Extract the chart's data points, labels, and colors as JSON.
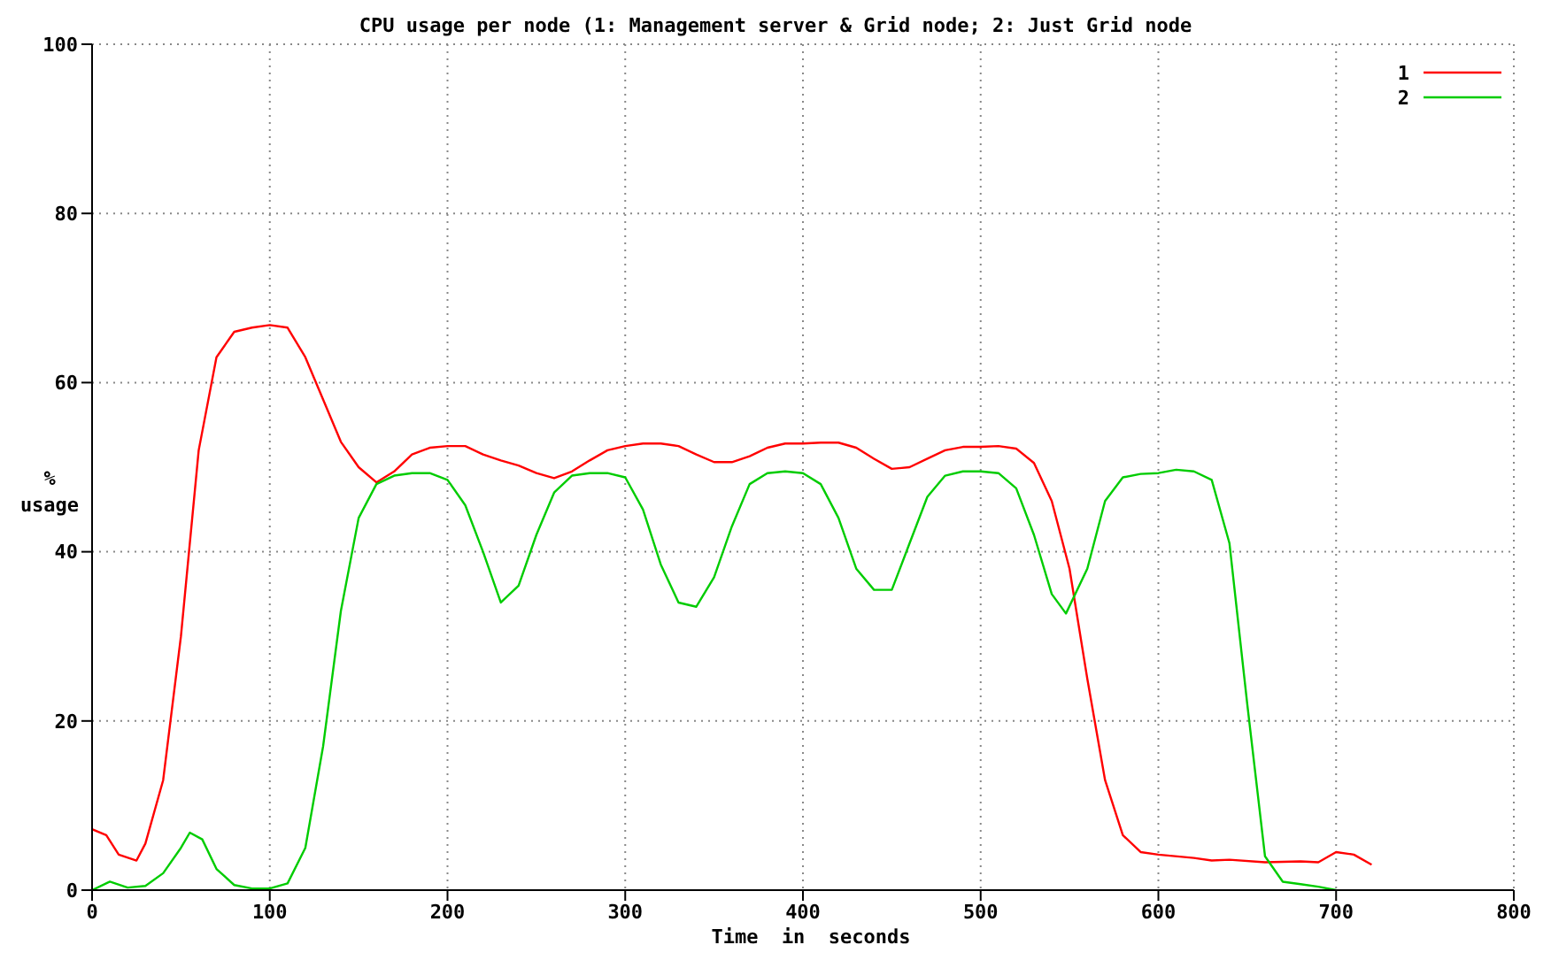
{
  "chart_data": {
    "type": "line",
    "title": "CPU usage per node (1: Management server & Grid node;  2: Just Grid node",
    "xlabel": "Time  in  seconds",
    "ylabel": "% usage",
    "xlim": [
      0,
      800
    ],
    "xticks": [
      0,
      100,
      200,
      300,
      400,
      500,
      600,
      700,
      800
    ],
    "ylim": [
      0,
      100
    ],
    "yticks": [
      0,
      20,
      40,
      60,
      80,
      100
    ],
    "grid": true,
    "legend": "top right",
    "marker": "none",
    "line_style": "solid",
    "series": [
      {
        "name": "1",
        "color": "#ff0000",
        "x": [
          0,
          8,
          15,
          25,
          30,
          40,
          50,
          60,
          70,
          80,
          90,
          100,
          110,
          120,
          130,
          140,
          150,
          160,
          170,
          180,
          190,
          200,
          210,
          220,
          230,
          240,
          250,
          260,
          270,
          280,
          290,
          300,
          310,
          320,
          330,
          340,
          350,
          360,
          370,
          380,
          390,
          400,
          410,
          420,
          430,
          440,
          450,
          460,
          470,
          480,
          490,
          500,
          510,
          520,
          530,
          540,
          550,
          560,
          570,
          580,
          590,
          600,
          620,
          630,
          640,
          660,
          680,
          690,
          700,
          710,
          720
        ],
        "values": [
          7.2,
          6.5,
          4.2,
          3.5,
          5.5,
          13,
          30,
          52,
          63,
          66,
          66.5,
          66.8,
          66.5,
          63,
          58,
          53,
          50,
          48.2,
          49.5,
          51.5,
          52.3,
          52.5,
          52.5,
          51.5,
          50.8,
          50.2,
          49.3,
          48.7,
          49.5,
          50.8,
          52,
          52.5,
          52.8,
          52.8,
          52.5,
          51.5,
          50.6,
          50.6,
          51.3,
          52.3,
          52.8,
          52.8,
          52.9,
          52.9,
          52.3,
          51,
          49.8,
          50,
          51,
          52,
          52.4,
          52.4,
          52.5,
          52.2,
          50.5,
          46,
          38,
          25,
          13,
          6.5,
          4.5,
          4.2,
          3.8,
          3.5,
          3.6,
          3.3,
          3.4,
          3.3,
          4.5,
          4.2,
          3
        ]
      },
      {
        "name": "2",
        "color": "#00cc00",
        "x": [
          0,
          10,
          20,
          30,
          40,
          50,
          55,
          62,
          70,
          80,
          90,
          100,
          110,
          120,
          130,
          140,
          150,
          160,
          170,
          180,
          190,
          200,
          210,
          220,
          230,
          240,
          250,
          260,
          270,
          280,
          290,
          300,
          310,
          320,
          330,
          340,
          350,
          360,
          370,
          380,
          390,
          400,
          410,
          420,
          430,
          440,
          450,
          460,
          470,
          480,
          490,
          500,
          510,
          520,
          530,
          540,
          548,
          560,
          570,
          580,
          590,
          600,
          610,
          620,
          630,
          640,
          650,
          660,
          670,
          680,
          690,
          700
        ],
        "values": [
          0,
          1,
          0.3,
          0.5,
          2,
          5,
          6.8,
          6,
          2.5,
          0.6,
          0.2,
          0.2,
          0.8,
          5,
          17,
          33,
          44,
          48,
          49,
          49.3,
          49.3,
          48.5,
          45.5,
          40,
          34,
          36,
          42,
          47,
          49,
          49.3,
          49.3,
          48.8,
          45,
          38.5,
          34,
          33.5,
          37,
          43,
          48,
          49.3,
          49.5,
          49.3,
          48,
          44,
          38,
          35.5,
          35.5,
          41,
          46.5,
          49,
          49.5,
          49.5,
          49.3,
          47.5,
          42,
          35,
          32.7,
          38,
          46,
          48.8,
          49.2,
          49.3,
          49.7,
          49.5,
          48.5,
          41,
          22,
          4,
          1,
          0.7,
          0.4,
          0
        ]
      }
    ]
  }
}
